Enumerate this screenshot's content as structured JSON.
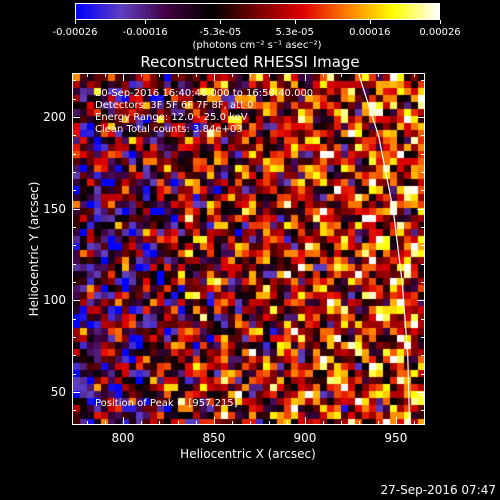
{
  "colorbar": {
    "tick_labels": [
      "-0.00026",
      "-0.00016",
      "-5.3e-05",
      "5.3e-05",
      "0.00016",
      "0.00026"
    ],
    "tick_values": [
      -0.00026,
      -0.00016,
      -5.3e-05,
      5.3e-05,
      0.00016,
      0.00026
    ],
    "range": [
      -0.00026,
      0.00026
    ],
    "units": "(photons cm⁻² s⁻¹ asec⁻²)",
    "colormap": [
      "#0000ff",
      "#6040c0",
      "#400040",
      "#000000",
      "#7a0000",
      "#e00000",
      "#ff8000",
      "#ffff00",
      "#ffffff"
    ]
  },
  "chart_data": {
    "type": "heatmap",
    "title": "Reconstructed RHESSI Image",
    "xlabel": "Heliocentric X (arcsec)",
    "ylabel": "Heliocentric Y (arcsec)",
    "xlim": [
      772,
      966
    ],
    "ylim": [
      32,
      224
    ],
    "xticks": [
      800,
      850,
      900,
      950
    ],
    "yticks": [
      50,
      100,
      150,
      200
    ],
    "xtick_labels": [
      "800",
      "850",
      "900",
      "950"
    ],
    "ytick_labels": [
      "50",
      "100",
      "150",
      "200"
    ],
    "annotations": [
      "20-Sep-2016 16:40:40.000 to 16:50:40.000",
      "Detectors: 3F 5F 6F 7F 8F, att 0",
      "Energy Range: 12.0 - 25.0 keV",
      "Clean     Total counts: 3.84e+03"
    ],
    "peak_label": "Position of Peak = [957,215]",
    "peak_position": [
      957,
      215
    ],
    "limb_curve": [
      [
        929,
        224
      ],
      [
        940,
        190
      ],
      [
        948,
        150
      ],
      [
        953,
        110
      ],
      [
        956,
        70
      ],
      [
        957,
        32
      ]
    ]
  },
  "timestamp": "27-Sep-2016 07:47"
}
